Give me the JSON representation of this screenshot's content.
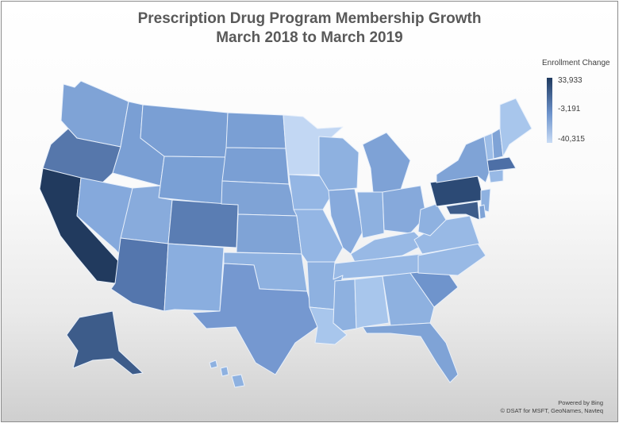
{
  "title": {
    "line1": "Prescription Drug Program Membership Growth",
    "line2": "March 2018 to March 2019"
  },
  "legend": {
    "title": "Enrollment Change",
    "max": "33,933",
    "mid": "-3,191",
    "min": "-40,315",
    "colors": {
      "high": "#1f3a5f",
      "mid": "#6d93cc",
      "low": "#c9dcf5"
    }
  },
  "attribution": {
    "line1": "Powered by Bing",
    "line2": "© DSAT for MSFT, GeoNames, Navteq"
  },
  "shading_levels": {
    "california": 1.0,
    "alaska": 0.85,
    "pennsylvania": 0.85,
    "arizona": 0.72,
    "colorado": 0.7,
    "oregon": 0.68,
    "massachusetts": 0.68,
    "maryland": 0.72,
    "minnesota": 0.12,
    "default": 0.45
  }
}
